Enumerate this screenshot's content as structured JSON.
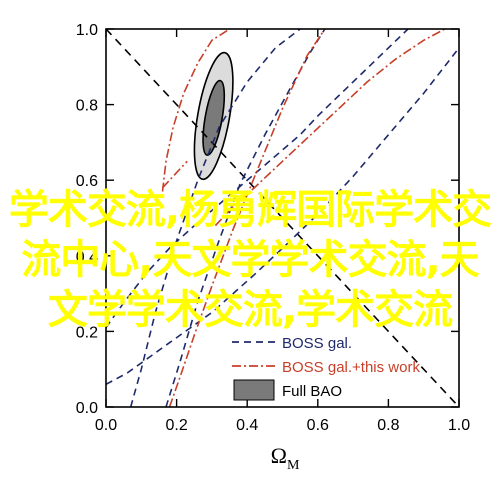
{
  "chart_data": {
    "type": "line",
    "xlabel_main": "Ω",
    "xlabel_sub": "M",
    "ylabel": "",
    "xlim": [
      0.0,
      1.0
    ],
    "ylim": [
      0.0,
      1.0
    ],
    "xticks": [
      "0.0",
      "0.2",
      "0.4",
      "0.6",
      "0.8",
      "1.0"
    ],
    "yticks": [
      "0.0",
      "0.2",
      "0.4",
      "0.6",
      "0.8",
      "1.0"
    ],
    "diagonal": {
      "name": "",
      "x": [
        0.0,
        1.0
      ],
      "y": [
        1.0,
        0.0
      ]
    },
    "boss": {
      "name": "BOSS gal.",
      "color": "#1f2a6b",
      "lines": [
        {
          "x": [
            0.0,
            0.06,
            0.12,
            0.18,
            0.24,
            0.3,
            0.36,
            0.42,
            0.5,
            0.6,
            0.7,
            0.8,
            0.9,
            1.0
          ],
          "y": [
            0.06,
            0.09,
            0.13,
            0.17,
            0.21,
            0.25,
            0.3,
            0.35,
            0.42,
            0.51,
            0.61,
            0.72,
            0.83,
            0.95
          ]
        },
        {
          "x": [
            0.0,
            0.03,
            0.07,
            0.12,
            0.18,
            0.25,
            0.35,
            0.45,
            0.55,
            0.6,
            0.7,
            0.8,
            0.9,
            1.0
          ],
          "y": [
            0.21,
            0.25,
            0.3,
            0.36,
            0.42,
            0.48,
            0.56,
            0.64,
            0.72,
            0.77,
            0.86,
            0.95,
            1.04,
            1.13
          ]
        },
        {
          "x": [
            0.07,
            0.1,
            0.14,
            0.2,
            0.26,
            0.32,
            0.4,
            0.48,
            0.55
          ],
          "y": [
            0.0,
            0.1,
            0.25,
            0.44,
            0.6,
            0.74,
            0.86,
            0.95,
            1.0
          ]
        },
        {
          "x": [
            0.17,
            0.21,
            0.26,
            0.32,
            0.38,
            0.45,
            0.52,
            0.58,
            0.62
          ],
          "y": [
            0.0,
            0.12,
            0.28,
            0.44,
            0.59,
            0.72,
            0.84,
            0.94,
            1.0
          ]
        }
      ]
    },
    "boss_this_work": {
      "name": "BOSS gal.+this work",
      "color": "#c8402a",
      "lines": [
        {
          "x": [
            0.16,
            0.17,
            0.19,
            0.22,
            0.26,
            0.3,
            0.35
          ],
          "y": [
            0.57,
            0.65,
            0.74,
            0.83,
            0.91,
            0.97,
            1.0
          ]
        },
        {
          "x": [
            0.31,
            0.36,
            0.42,
            0.5,
            0.58,
            0.66,
            0.74,
            0.82,
            0.9,
            0.96
          ],
          "y": [
            0.48,
            0.53,
            0.58,
            0.65,
            0.72,
            0.79,
            0.86,
            0.92,
            0.97,
            1.0
          ]
        },
        {
          "x": [
            0.18,
            0.21,
            0.25,
            0.3,
            0.36,
            0.43,
            0.5,
            0.57,
            0.62
          ],
          "y": [
            0.0,
            0.08,
            0.19,
            0.32,
            0.47,
            0.63,
            0.79,
            0.93,
            1.0
          ]
        },
        {
          "x": [
            0.16,
            0.2,
            0.23
          ],
          "y": [
            0.58,
            0.62,
            0.65
          ]
        }
      ]
    },
    "bao": {
      "name": "Full BAO",
      "outer_color": "#dcdcdc",
      "inner_color": "#7a7a7a",
      "outer_ellipse": {
        "cx": 0.305,
        "cy": 0.77,
        "rx": 0.045,
        "ry": 0.17,
        "angle_deg": 10
      },
      "inner_ellipse": {
        "cx": 0.305,
        "cy": 0.765,
        "rx": 0.024,
        "ry": 0.1,
        "angle_deg": 10
      }
    },
    "legend_position": "lower-right",
    "grid": false
  },
  "overlay_text": [
    "学术交流,杨勇辉国际学术交",
    "流中心,天文学学术交流,天",
    "文学学术交流,学术交流"
  ]
}
